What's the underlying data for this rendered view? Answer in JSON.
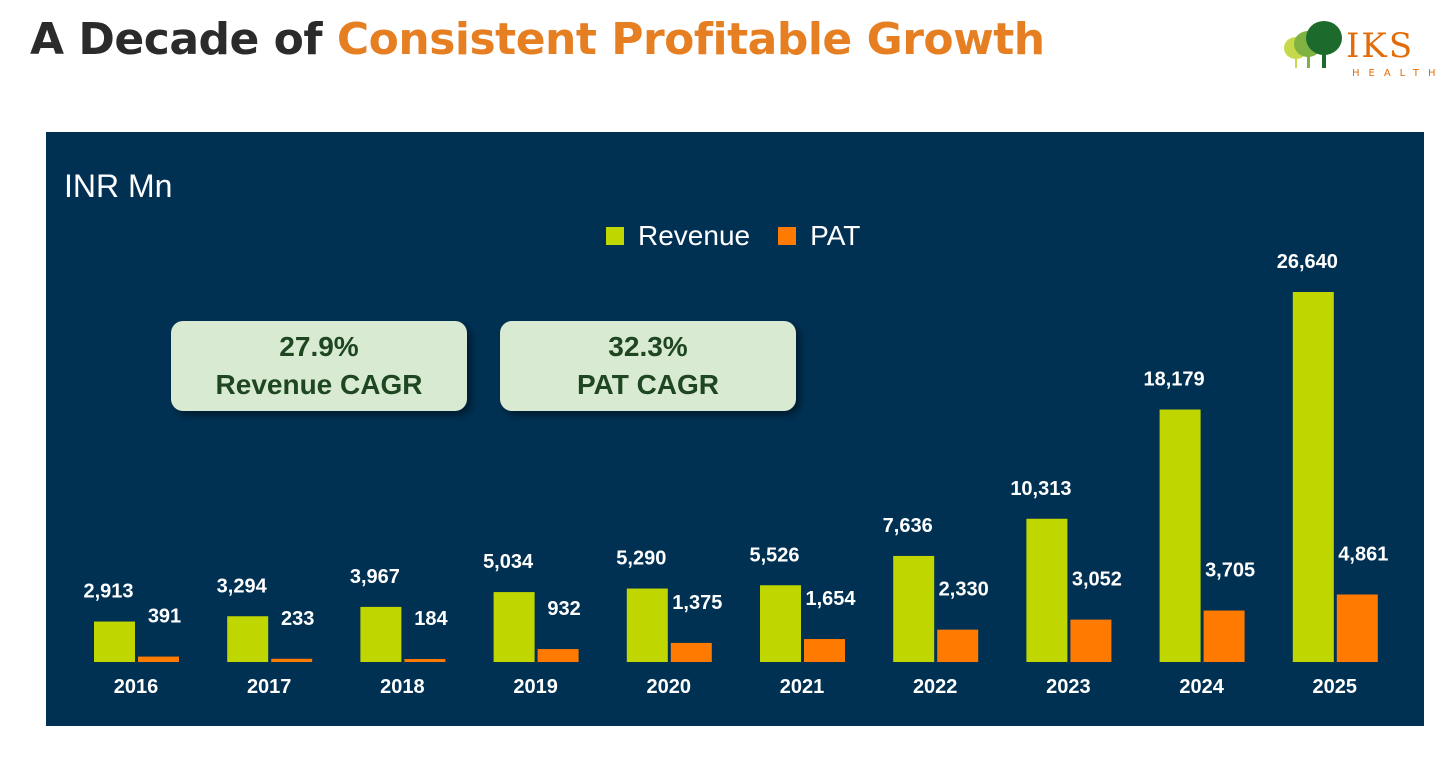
{
  "page": {
    "title_part1": "A Decade of ",
    "title_part2": "Consistent Profitable Growth",
    "logo_text": "IKS",
    "logo_sub": "HEALTH"
  },
  "chart_data": {
    "type": "bar",
    "unit_label": "INR Mn",
    "categories": [
      "2016",
      "2017",
      "2018",
      "2019",
      "2020",
      "2021",
      "2022",
      "2023",
      "2024",
      "2025"
    ],
    "series": [
      {
        "name": "Revenue",
        "color": "#bfd600",
        "values": [
          2913,
          3294,
          3967,
          5034,
          5290,
          5526,
          7636,
          10313,
          18179,
          26640
        ],
        "labels": [
          "2,913",
          "3,294",
          "3,967",
          "5,034",
          "5,290",
          "5,526",
          "7,636",
          "10,313",
          "18,179",
          "26,640"
        ]
      },
      {
        "name": "PAT",
        "color": "#ff7a00",
        "values": [
          391,
          233,
          184,
          932,
          1375,
          1654,
          2330,
          3052,
          3705,
          4861
        ],
        "labels": [
          "391",
          "233",
          "184",
          "932",
          "1,375",
          "1,654",
          "2,330",
          "3,052",
          "3,705",
          "4,861"
        ]
      }
    ],
    "ylim": [
      0,
      28000
    ],
    "annotations": [
      {
        "value": "27.9%",
        "label": "Revenue CAGR"
      },
      {
        "value": "32.3%",
        "label": "PAT CAGR"
      }
    ],
    "colors": {
      "background": "#003153",
      "annotation_bg": "#d9ead3",
      "annotation_text": "#1e4620"
    }
  }
}
